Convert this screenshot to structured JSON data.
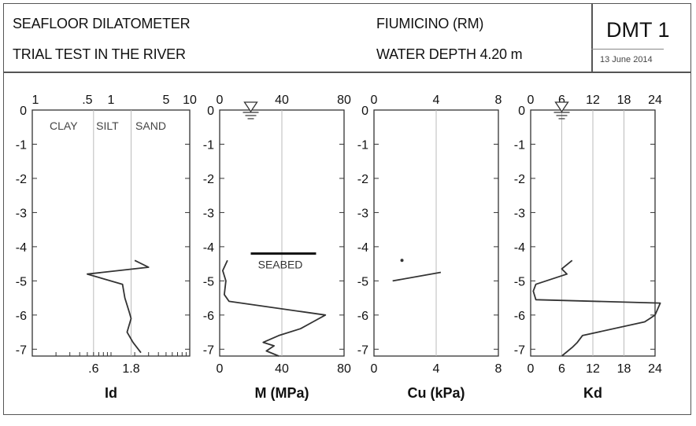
{
  "header": {
    "line1": "SEAFLOOR DILATOMETER",
    "line2": "TRIAL TEST IN THE RIVER",
    "site": "FIUMICINO (RM)",
    "depth": "WATER DEPTH 4.20 m",
    "test_id": "DMT 1",
    "date": "13 June 2014"
  },
  "chart_data": [
    {
      "type": "line",
      "xlabel": "Id",
      "ylabel": "",
      "x_scale": "log",
      "xlim": [
        0.1,
        10
      ],
      "ylim": [
        -7.2,
        0
      ],
      "y_ticks": [
        "0",
        "-1",
        "-2",
        "-3",
        "-4",
        "-5",
        "-6",
        "-7"
      ],
      "top_ticks": [
        "1",
        ".5",
        "1",
        "5",
        "10"
      ],
      "bottom_ticks": [
        ".6",
        "1.8"
      ],
      "soil_labels": [
        "CLAY",
        "SILT",
        "SAND"
      ],
      "series": [
        {
          "x": [
            2.0,
            3.0,
            0.5,
            1.4,
            1.5,
            1.7,
            1.8,
            1.6,
            1.9,
            2.4
          ],
          "y": [
            -4.4,
            -4.6,
            -4.8,
            -5.1,
            -5.5,
            -5.9,
            -6.1,
            -6.5,
            -6.8,
            -7.1
          ]
        }
      ]
    },
    {
      "type": "line",
      "xlabel": "M (MPa)",
      "ylabel": "",
      "xlim": [
        0,
        80
      ],
      "ylim": [
        -7.2,
        0
      ],
      "y_ticks": [
        "0",
        "-1",
        "-2",
        "-3",
        "-4",
        "-5",
        "-6",
        "-7"
      ],
      "top_ticks": [
        "0",
        "40",
        "80"
      ],
      "bottom_ticks": [
        "0",
        "40",
        "80"
      ],
      "annotations": [
        "SEABED"
      ],
      "seabed_depth": -4.2,
      "water_level_x": 20,
      "series": [
        {
          "x": [
            5,
            2,
            4,
            3,
            6,
            68,
            60,
            52,
            38,
            28,
            35,
            30,
            38
          ],
          "y": [
            -4.4,
            -4.7,
            -5.0,
            -5.4,
            -5.6,
            -6.0,
            -6.2,
            -6.4,
            -6.6,
            -6.8,
            -6.9,
            -7.05,
            -7.2
          ]
        }
      ]
    },
    {
      "type": "line",
      "xlabel": "Cu (kPa)",
      "ylabel": "",
      "xlim": [
        0,
        8
      ],
      "ylim": [
        -7.2,
        0
      ],
      "y_ticks": [
        "0",
        "-1",
        "-2",
        "-3",
        "-4",
        "-5",
        "-6",
        "-7"
      ],
      "top_ticks": [
        "0",
        "4",
        "8"
      ],
      "bottom_ticks": [
        "0",
        "4",
        "8"
      ],
      "series": [
        {
          "x": [
            1.2,
            4.3
          ],
          "y": [
            -5.0,
            -4.75
          ]
        },
        {
          "x": [
            1.8
          ],
          "y": [
            -4.4
          ]
        }
      ]
    },
    {
      "type": "line",
      "xlabel": "Kd",
      "ylabel": "",
      "xlim": [
        0,
        24
      ],
      "ylim": [
        -7.2,
        0
      ],
      "y_ticks": [
        "0",
        "-1",
        "-2",
        "-3",
        "-4",
        "-5",
        "-6",
        "-7"
      ],
      "top_ticks": [
        "0",
        "6",
        "12",
        "18",
        "24"
      ],
      "bottom_ticks": [
        "0",
        "6",
        "12",
        "18",
        "24"
      ],
      "water_level_x": 6,
      "series": [
        {
          "x": [
            8,
            6,
            7,
            4,
            1,
            0.5,
            1,
            25,
            24,
            23,
            22,
            10,
            9,
            8,
            6
          ],
          "y": [
            -4.4,
            -4.65,
            -4.8,
            -4.95,
            -5.1,
            -5.3,
            -5.55,
            -5.65,
            -6.0,
            -6.1,
            -6.2,
            -6.6,
            -6.8,
            -6.95,
            -7.2
          ]
        }
      ]
    }
  ]
}
